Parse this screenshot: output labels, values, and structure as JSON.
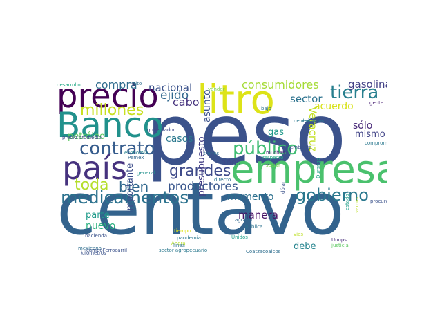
{
  "words": [
    {
      "text": "peso",
      "color": "#3b528b"
    },
    {
      "text": "centavo",
      "color": "#33638d"
    },
    {
      "text": "empresa",
      "color": "#4ac16d"
    },
    {
      "text": "litro",
      "color": "#dde318"
    },
    {
      "text": "precio",
      "color": "#440154"
    },
    {
      "text": "país",
      "color": "#46327e"
    },
    {
      "text": "Banco",
      "color": "#21918c"
    },
    {
      "text": "medicamentos",
      "color": "#2c728e"
    },
    {
      "text": "tierra",
      "color": "#277f8e"
    },
    {
      "text": "contrato",
      "color": "#365c8d"
    },
    {
      "text": "público",
      "color": "#3fbc73"
    },
    {
      "text": "gobierno",
      "color": "#2a788e"
    },
    {
      "text": "grandes",
      "color": "#3e4a89"
    },
    {
      "text": "millones",
      "color": "#c8e020"
    },
    {
      "text": "toda",
      "color": "#b5de2b"
    },
    {
      "text": "bien",
      "color": "#31688e"
    },
    {
      "text": "productores",
      "color": "#39568c"
    },
    {
      "text": "consumidores",
      "color": "#a5db36"
    },
    {
      "text": "gasolina",
      "color": "#424086"
    },
    {
      "text": "compra",
      "color": "#2f6c8e"
    },
    {
      "text": "nacional",
      "color": "#3b528b"
    },
    {
      "text": "ejido",
      "color": "#31688e"
    },
    {
      "text": "cabo",
      "color": "#46337e"
    },
    {
      "text": "sector",
      "color": "#2c728e"
    },
    {
      "text": "acuerdo",
      "color": "#d8e219"
    },
    {
      "text": "Veracruz",
      "color": "#c2df23"
    },
    {
      "text": "sólo",
      "color": "#482878"
    },
    {
      "text": "mismo",
      "color": "#414487"
    },
    {
      "text": "casos",
      "color": "#2a788e"
    },
    {
      "text": "asunto",
      "color": "#3b528b"
    },
    {
      "text": "años",
      "color": "#3e4a89"
    },
    {
      "text": "gas",
      "color": "#1f9a8a"
    },
    {
      "text": "momento",
      "color": "#2d708e"
    },
    {
      "text": "presupuesto",
      "color": "#433e85"
    },
    {
      "text": "manera",
      "color": "#471365"
    },
    {
      "text": "importante",
      "color": "#3d4d8a"
    },
    {
      "text": "parte",
      "color": "#1e9b8a"
    },
    {
      "text": "nuevo",
      "color": "#2ab07f"
    },
    {
      "text": "petróleo",
      "color": "#5ec962"
    },
    {
      "text": "debe",
      "color": "#25848e"
    },
    {
      "text": "desarrollo",
      "color": "#22a884"
    },
    {
      "text": "alto",
      "color": "#2e6e8e"
    },
    {
      "text": "vender",
      "color": "#7ad151"
    },
    {
      "text": "bajo",
      "color": "#2c728e"
    },
    {
      "text": "necesitamos",
      "color": "#2a788e"
    },
    {
      "text": "gente",
      "color": "#482173"
    },
    {
      "text": "tiempo",
      "color": "#bddf26"
    },
    {
      "text": "gobernador",
      "color": "#3e4989"
    },
    {
      "text": "embargo",
      "color": "#3b528b"
    },
    {
      "text": "precio promedio",
      "color": "#3e4a89"
    },
    {
      "text": "compromiso",
      "color": "#2a788e"
    },
    {
      "text": "economía",
      "color": "#26828e"
    },
    {
      "text": "Pemex",
      "color": "#31688e"
    },
    {
      "text": "trenes",
      "color": "#2f6b8e"
    },
    {
      "text": "muchas",
      "color": "#482878"
    },
    {
      "text": "respecto",
      "color": "#22a884"
    },
    {
      "text": "social",
      "color": "#7ad151"
    },
    {
      "text": "general",
      "color": "#21918c"
    },
    {
      "text": "directo",
      "color": "#2c728e"
    },
    {
      "text": "mexicano",
      "color": "#2e6e8e"
    },
    {
      "text": "kilómetros",
      "color": "#3b528b"
    },
    {
      "text": "dar",
      "color": "#2a788e"
    },
    {
      "text": "Durango",
      "color": "#1fa187"
    },
    {
      "text": "ferrocarriles",
      "color": "#21918c"
    },
    {
      "text": "procuraduría",
      "color": "#3b528b"
    },
    {
      "text": "estado",
      "color": "#1f9e89"
    },
    {
      "text": "hacienda",
      "color": "#3b528b"
    },
    {
      "text": "Ahora",
      "color": "#b5de2b"
    },
    {
      "text": "tiempo",
      "color": "#dde318"
    },
    {
      "text": "agrario",
      "color": "#31688e"
    },
    {
      "text": "pública",
      "color": "#2c728e"
    },
    {
      "text": "pandemia",
      "color": "#2a788e"
    },
    {
      "text": "Unidos",
      "color": "#1f9e89"
    },
    {
      "text": "vías",
      "color": "#bddf26"
    },
    {
      "text": "Unops",
      "color": "#472c7a"
    },
    {
      "text": "justicia",
      "color": "#5ec962"
    },
    {
      "text": "campoFerrocarril",
      "color": "#3b528b"
    },
    {
      "text": "línea",
      "color": "#2c728e"
    },
    {
      "text": "sector agropecuario",
      "color": "#2a788e"
    },
    {
      "text": "Coatzacoalcos",
      "color": "#2e6e8e"
    },
    {
      "text": "dólar",
      "color": "#3b528b"
    },
    {
      "text": "vamos",
      "color": "#bddf26"
    }
  ]
}
